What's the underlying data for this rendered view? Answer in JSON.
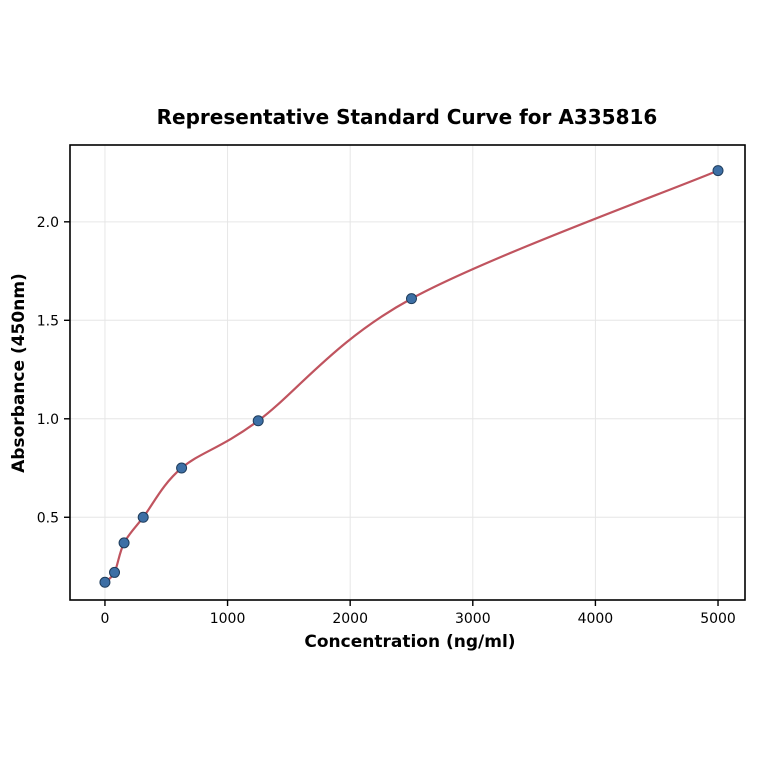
{
  "page": {
    "background_color": "#ffffff"
  },
  "chart_data": {
    "type": "scatter",
    "title": "Representative Standard Curve for A335816",
    "xlabel": "Concentration (ng/ml)",
    "ylabel": "Absorbance (450nm)",
    "xlim": [
      -285,
      5220
    ],
    "ylim": [
      0.08,
      2.39
    ],
    "grid": true,
    "legend_position": "none",
    "x_ticks": [
      {
        "value": 0,
        "label": "0"
      },
      {
        "value": 1000,
        "label": "1000"
      },
      {
        "value": 2000,
        "label": "2000"
      },
      {
        "value": 3000,
        "label": "3000"
      },
      {
        "value": 4000,
        "label": "4000"
      },
      {
        "value": 5000,
        "label": "5000"
      }
    ],
    "y_ticks": [
      {
        "value": 0.5,
        "label": "0.5"
      },
      {
        "value": 1.0,
        "label": "1.0"
      },
      {
        "value": 1.5,
        "label": "1.5"
      },
      {
        "value": 2.0,
        "label": "2.0"
      }
    ],
    "points": [
      {
        "x": 0,
        "y": 0.17
      },
      {
        "x": 78,
        "y": 0.22
      },
      {
        "x": 156,
        "y": 0.37
      },
      {
        "x": 312,
        "y": 0.5
      },
      {
        "x": 625,
        "y": 0.75
      },
      {
        "x": 1250,
        "y": 0.99
      },
      {
        "x": 2500,
        "y": 1.61
      },
      {
        "x": 5000,
        "y": 2.26
      }
    ],
    "fit_curve": "smooth-through-points",
    "colors": {
      "point_fill": "#3d6fa5",
      "point_edge": "#1f3d5c",
      "curve": "#c0545f",
      "grid": "#e6e6e6",
      "frame": "#000000"
    }
  }
}
